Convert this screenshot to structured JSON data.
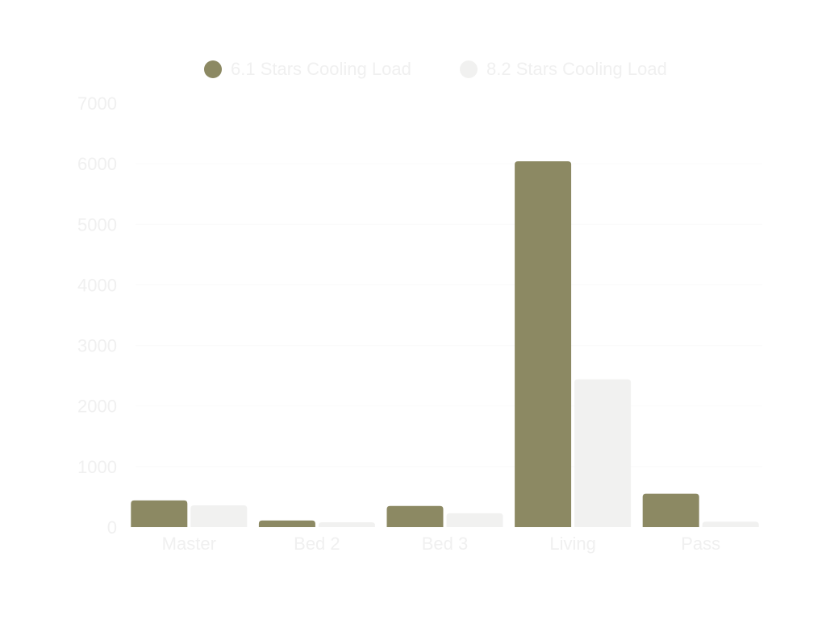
{
  "chart_data": {
    "type": "bar",
    "categories": [
      "Master",
      "Bed 2",
      "Bed 3",
      "Living",
      "Pass"
    ],
    "series": [
      {
        "name": "6.1 Stars Cooling Load",
        "color": "#8c8963",
        "values": [
          440,
          110,
          350,
          6040,
          550
        ]
      },
      {
        "name": "8.2 Stars Cooling Load",
        "color": "#f1f1f0",
        "values": [
          360,
          80,
          230,
          2440,
          90
        ]
      }
    ],
    "yticks": [
      "0",
      "1000",
      "2000",
      "3000",
      "4000",
      "5000",
      "6000",
      "7000"
    ],
    "ylim": [
      0,
      7000
    ],
    "legend_position": "top-center",
    "grid": true,
    "text_color": "#f0f0f0",
    "grid_color": "#fafafa"
  }
}
